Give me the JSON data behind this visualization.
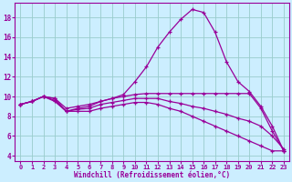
{
  "xlabel": "Windchill (Refroidissement éolien,°C)",
  "background_color": "#cceeff",
  "grid_color": "#99cccc",
  "line_color": "#990099",
  "xlim": [
    -0.5,
    23.5
  ],
  "ylim": [
    3.5,
    19.5
  ],
  "xticks": [
    0,
    1,
    2,
    3,
    4,
    5,
    6,
    7,
    8,
    9,
    10,
    11,
    12,
    13,
    14,
    15,
    16,
    17,
    18,
    19,
    20,
    21,
    22,
    23
  ],
  "yticks": [
    4,
    6,
    8,
    10,
    12,
    14,
    16,
    18
  ],
  "lines": [
    {
      "x": [
        0,
        1,
        2,
        3,
        4,
        5,
        6,
        7,
        8,
        9,
        10,
        11,
        12,
        13,
        14,
        15,
        16,
        17,
        18,
        19,
        20,
        21,
        22,
        23
      ],
      "y": [
        9.2,
        9.5,
        10.0,
        9.8,
        8.5,
        8.8,
        9.0,
        9.5,
        9.8,
        10.2,
        11.5,
        13.0,
        15.0,
        16.5,
        17.8,
        18.8,
        18.5,
        16.5,
        13.5,
        11.5,
        10.5,
        9.0,
        7.0,
        4.5
      ]
    },
    {
      "x": [
        0,
        1,
        2,
        3,
        4,
        5,
        6,
        7,
        8,
        9,
        10,
        11,
        12,
        13,
        14,
        15,
        16,
        17,
        18,
        19,
        20,
        21,
        22,
        23
      ],
      "y": [
        9.2,
        9.5,
        10.0,
        9.8,
        8.8,
        9.0,
        9.2,
        9.5,
        9.8,
        10.0,
        10.2,
        10.3,
        10.3,
        10.3,
        10.3,
        10.3,
        10.3,
        10.3,
        10.3,
        10.3,
        10.3,
        8.8,
        6.5,
        4.5
      ]
    },
    {
      "x": [
        0,
        1,
        2,
        3,
        4,
        5,
        6,
        7,
        8,
        9,
        10,
        11,
        12,
        13,
        14,
        15,
        16,
        17,
        18,
        19,
        20,
        21,
        22,
        23
      ],
      "y": [
        9.2,
        9.5,
        10.0,
        9.6,
        8.5,
        8.7,
        8.8,
        9.2,
        9.4,
        9.6,
        9.8,
        9.8,
        9.8,
        9.5,
        9.3,
        9.0,
        8.8,
        8.5,
        8.2,
        7.8,
        7.5,
        7.0,
        6.0,
        4.7
      ]
    },
    {
      "x": [
        0,
        1,
        2,
        3,
        4,
        5,
        6,
        7,
        8,
        9,
        10,
        11,
        12,
        13,
        14,
        15,
        16,
        17,
        18,
        19,
        20,
        21,
        22,
        23
      ],
      "y": [
        9.2,
        9.5,
        10.0,
        9.5,
        8.5,
        8.5,
        8.5,
        8.8,
        9.0,
        9.2,
        9.4,
        9.4,
        9.2,
        8.8,
        8.5,
        8.0,
        7.5,
        7.0,
        6.5,
        6.0,
        5.5,
        5.0,
        4.5,
        4.5
      ]
    }
  ]
}
